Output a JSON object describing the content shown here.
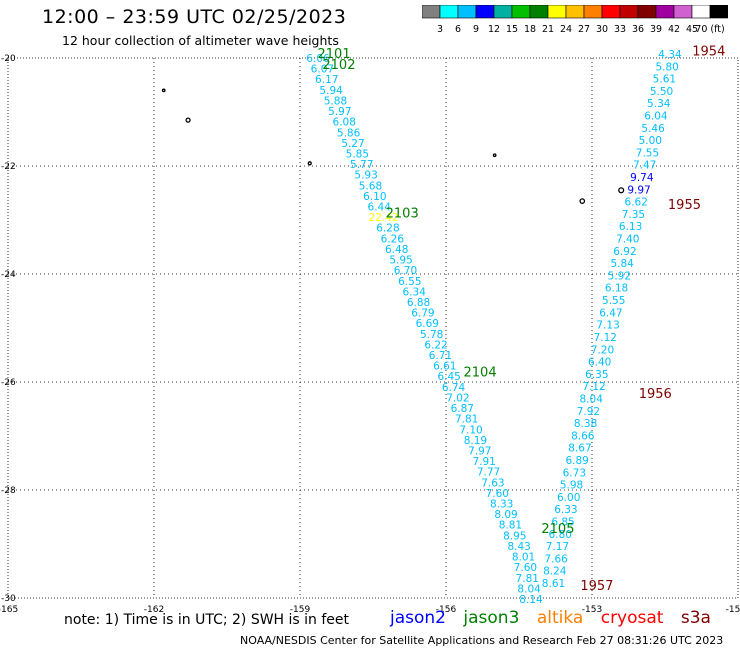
{
  "title": "12:00 – 23:59 UTC 02/25/2023",
  "subtitle": "12 hour collection of altimeter wave heights",
  "colorbar": {
    "labels": [
      "3",
      "6",
      "9",
      "12",
      "15",
      "18",
      "21",
      "24",
      "27",
      "30",
      "33",
      "36",
      "39",
      "42",
      "45",
      "70 (ft)"
    ],
    "colors": [
      "#808080",
      "#00ffff",
      "#00bfff",
      "#0000ff",
      "#00b0a0",
      "#00c000",
      "#008000",
      "#ffff00",
      "#ffc000",
      "#ff8000",
      "#ff0000",
      "#c00000",
      "#800000",
      "#a000a0",
      "#d060d0",
      "#ffffff",
      "#000000"
    ]
  },
  "chart_data": {
    "type": "scatter",
    "title": "12:00 – 23:59 UTC 02/25/2023",
    "subtitle": "12 hour collection of altimeter wave heights",
    "xlabel": "",
    "ylabel": "",
    "x_ticks": [
      "-165",
      "-162",
      "-159",
      "-156",
      "-153",
      "-15"
    ],
    "y_ticks": [
      "-20",
      "-22",
      "-24",
      "-26",
      "-28",
      "-30"
    ],
    "xlim": [
      -165,
      -150
    ],
    "ylim": [
      -30,
      -20
    ],
    "grid": true,
    "track1": {
      "values": [
        "6.06",
        "6.07",
        "6.17",
        "5.94",
        "5.88",
        "5.97",
        "6.08",
        "5.86",
        "5.27",
        "5.85",
        "5.77",
        "5.93",
        "5.68",
        "6.10",
        "6.44",
        "22.42",
        "6.28",
        "6.26",
        "6.48",
        "5.95",
        "6.70",
        "6.55",
        "6.34",
        "6.88",
        "6.79",
        "6.69",
        "5.78",
        "6.22",
        "6.71",
        "6.61",
        "6.45",
        "6.74",
        "7.02",
        "6.87",
        "7.81",
        "7.10",
        "8.19",
        "7.97",
        "7.91",
        "7.77",
        "7.63",
        "7.60",
        "8.33",
        "8.09",
        "8.81",
        "8.95",
        "8.43",
        "8.01",
        "7.60",
        "7.81",
        "8.04",
        "8.14"
      ]
    },
    "track2": {
      "values": [
        "4.34",
        "5.80",
        "5.61",
        "5.50",
        "5.34",
        "6.04",
        "5.46",
        "5.00",
        "7.55",
        "7.47",
        "9.74",
        "9.97",
        "6.62",
        "7.35",
        "6.13",
        "7.40",
        "6.92",
        "5.84",
        "5.92",
        "6.18",
        "5.55",
        "6.47",
        "7.13",
        "7.12",
        "7.20",
        "6.40",
        "6.35",
        "7.12",
        "8.04",
        "7.92",
        "8.38",
        "8.66",
        "8.67",
        "6.89",
        "6.73",
        "5.98",
        "6.00",
        "6.33",
        "6.85",
        "6.80",
        "7.17",
        "7.66",
        "8.24",
        "8.61"
      ]
    },
    "time_labels": [
      {
        "text": "2101",
        "lon": -158.3,
        "lat": -20.0,
        "color": "#008000"
      },
      {
        "text": "2102",
        "lon": -158.2,
        "lat": -20.2,
        "color": "#008000"
      },
      {
        "text": "2103",
        "lon": -156.9,
        "lat": -22.95,
        "color": "#008000"
      },
      {
        "text": "2104",
        "lon": -155.3,
        "lat": -25.9,
        "color": "#008000"
      },
      {
        "text": "2105",
        "lon": -153.7,
        "lat": -28.8,
        "color": "#008000"
      },
      {
        "text": "1954",
        "lon": -150.6,
        "lat": -19.95,
        "color": "#800000"
      },
      {
        "text": "1955",
        "lon": -151.1,
        "lat": -22.8,
        "color": "#800000"
      },
      {
        "text": "1956",
        "lon": -151.7,
        "lat": -26.3,
        "color": "#800000"
      },
      {
        "text": "1957",
        "lon": -152.9,
        "lat": -29.85,
        "color": "#800000"
      }
    ]
  },
  "note": "note:  1) Time is in UTC; 2) SWH is in feet",
  "legend": [
    {
      "text": "jason2",
      "color": "#0000ff"
    },
    {
      "text": "jason3",
      "color": "#008000"
    },
    {
      "text": "altika",
      "color": "#ff8000"
    },
    {
      "text": "cryosat",
      "color": "#ff0000"
    },
    {
      "text": "s3a",
      "color": "#800000"
    }
  ],
  "footer": "NOAA/NESDIS Center for Satellite Applications and Research    Feb 27 08:31:26 UTC 2023"
}
